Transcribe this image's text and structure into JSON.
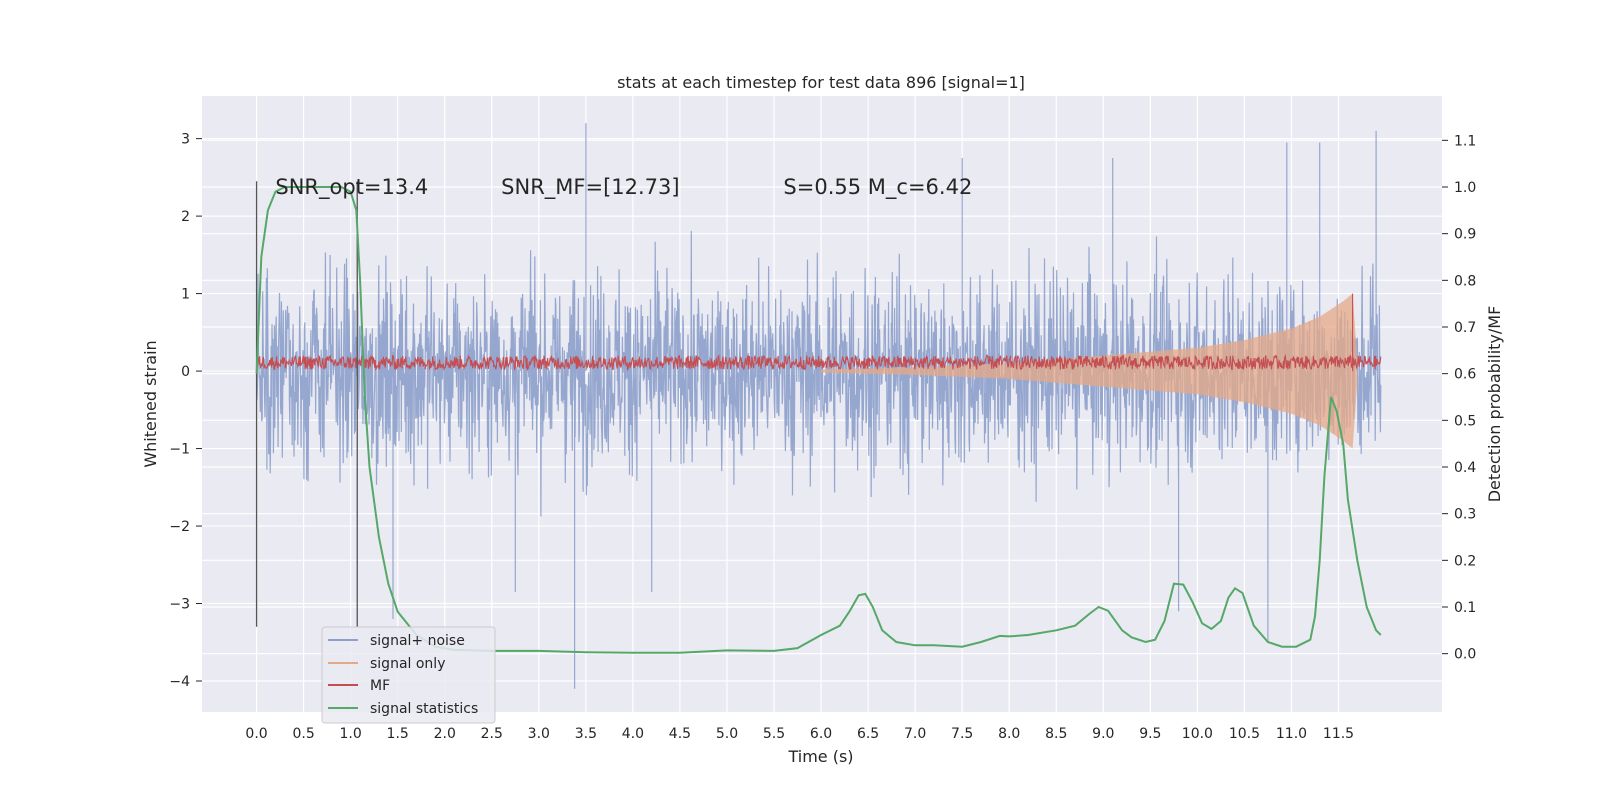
{
  "chart_data": {
    "type": "line",
    "title": "stats at each timestep for test data 896 [signal=1]",
    "xlabel": "Time (s)",
    "ylabel_left": "Whitened strain",
    "ylabel_right": "Detection probability/MF",
    "xlim": [
      -0.58,
      12.6
    ],
    "ylim_left": [
      -4.4,
      3.55
    ],
    "ylim_right": [
      -0.125,
      1.195
    ],
    "x_ticks": [
      0.0,
      0.5,
      1.0,
      1.5,
      2.0,
      2.5,
      3.0,
      3.5,
      4.0,
      4.5,
      5.0,
      5.5,
      6.0,
      6.5,
      7.0,
      7.5,
      8.0,
      8.5,
      9.0,
      9.5,
      10.0,
      10.5,
      11.0,
      11.5
    ],
    "x_tick_labels": [
      "0.0",
      "0.5",
      "1.0",
      "1.5",
      "2.0",
      "2.5",
      "3.0",
      "3.5",
      "4.0",
      "4.5",
      "5.0",
      "5.5",
      "6.0",
      "6.5",
      "7.0",
      "7.5",
      "8.0",
      "8.5",
      "9.0",
      "9.5",
      "10.0",
      "10.5",
      "11.0",
      "11.5"
    ],
    "y_left_ticks": [
      -4,
      -3,
      -2,
      -1,
      0,
      1,
      2,
      3
    ],
    "y_left_tick_labels": [
      "−4",
      "−3",
      "−2",
      "−1",
      "0",
      "1",
      "2",
      "3"
    ],
    "y_right_ticks": [
      0.0,
      0.1,
      0.2,
      0.3,
      0.4,
      0.5,
      0.6,
      0.7,
      0.8,
      0.9,
      1.0,
      1.1
    ],
    "y_right_tick_labels": [
      "0.0",
      "0.1",
      "0.2",
      "0.3",
      "0.4",
      "0.5",
      "0.6",
      "0.7",
      "0.8",
      "0.9",
      "1.0",
      "1.1"
    ],
    "grid": true,
    "legend_placement": "lower-left",
    "annotations": [
      {
        "text": "SNR_opt=13.4",
        "x": 0.2,
        "y_left": 2.4
      },
      {
        "text": "SNR_MF=[12.73]",
        "x": 2.6,
        "y_left": 2.4
      },
      {
        "text": "S=0.55   M_c=6.42",
        "x": 5.6,
        "y_left": 2.4
      }
    ],
    "vertical_lines": [
      {
        "x": 0.0,
        "y_range_left": [
          -3.3,
          2.45
        ]
      },
      {
        "x": 1.07,
        "y_range_left": [
          -3.3,
          2.45
        ]
      }
    ],
    "series": [
      {
        "name": "signal+ noise",
        "axis": "left",
        "color": "#8da0cb",
        "x_range": [
          0.0,
          11.95
        ],
        "typical_band": [
          -1.3,
          1.3
        ],
        "extremes": [
          -4.1,
          3.2
        ],
        "spikes": [
          {
            "x": 3.38,
            "y": -4.1
          },
          {
            "x": 3.5,
            "y": 3.2
          },
          {
            "x": 11.9,
            "y": 3.1
          },
          {
            "x": 10.75,
            "y": -3.5
          },
          {
            "x": 10.95,
            "y": 2.95
          },
          {
            "x": 11.3,
            "y": 2.95
          },
          {
            "x": 1.45,
            "y": -3.2
          },
          {
            "x": 2.75,
            "y": -2.85
          },
          {
            "x": 4.2,
            "y": -2.85
          },
          {
            "x": 9.1,
            "y": 2.75
          },
          {
            "x": 7.5,
            "y": 2.75
          },
          {
            "x": 9.8,
            "y": -3.1
          }
        ]
      },
      {
        "name": "signal only",
        "axis": "left",
        "color": "#e5a887",
        "points": [
          {
            "x": 6.0,
            "amp": 0.02
          },
          {
            "x": 7.0,
            "amp": 0.05
          },
          {
            "x": 8.0,
            "amp": 0.1
          },
          {
            "x": 9.0,
            "amp": 0.2
          },
          {
            "x": 10.0,
            "amp": 0.3
          },
          {
            "x": 10.5,
            "amp": 0.4
          },
          {
            "x": 11.0,
            "amp": 0.55
          },
          {
            "x": 11.3,
            "amp": 0.7
          },
          {
            "x": 11.55,
            "amp": 0.9
          },
          {
            "x": 11.65,
            "amp": 1.0
          },
          {
            "x": 11.7,
            "amp": 0.15
          }
        ]
      },
      {
        "name": "MF",
        "axis": "left",
        "color": "#c44e52",
        "x_range": [
          0.0,
          11.95
        ],
        "baseline": [
          0.0,
          0.2
        ],
        "peak": {
          "x": 11.65,
          "y": 1.0
        }
      },
      {
        "name": "signal statistics",
        "axis": "right",
        "color": "#55a868",
        "points": [
          [
            0.0,
            0.6
          ],
          [
            0.05,
            0.85
          ],
          [
            0.12,
            0.95
          ],
          [
            0.2,
            0.99
          ],
          [
            0.3,
            1.0
          ],
          [
            0.5,
            1.0
          ],
          [
            0.7,
            1.0
          ],
          [
            0.9,
            1.0
          ],
          [
            1.0,
            0.99
          ],
          [
            1.06,
            0.95
          ],
          [
            1.1,
            0.8
          ],
          [
            1.15,
            0.55
          ],
          [
            1.2,
            0.4
          ],
          [
            1.3,
            0.25
          ],
          [
            1.4,
            0.15
          ],
          [
            1.5,
            0.09
          ],
          [
            1.7,
            0.04
          ],
          [
            1.9,
            0.015
          ],
          [
            2.1,
            0.008
          ],
          [
            2.5,
            0.006
          ],
          [
            3.0,
            0.006
          ],
          [
            3.5,
            0.003
          ],
          [
            4.0,
            0.002
          ],
          [
            4.5,
            0.002
          ],
          [
            5.0,
            0.007
          ],
          [
            5.5,
            0.006
          ],
          [
            5.75,
            0.012
          ],
          [
            6.0,
            0.04
          ],
          [
            6.2,
            0.06
          ],
          [
            6.3,
            0.09
          ],
          [
            6.4,
            0.125
          ],
          [
            6.47,
            0.128
          ],
          [
            6.55,
            0.1
          ],
          [
            6.65,
            0.05
          ],
          [
            6.8,
            0.025
          ],
          [
            7.0,
            0.018
          ],
          [
            7.2,
            0.018
          ],
          [
            7.5,
            0.015
          ],
          [
            7.7,
            0.025
          ],
          [
            7.9,
            0.038
          ],
          [
            8.0,
            0.037
          ],
          [
            8.2,
            0.04
          ],
          [
            8.5,
            0.05
          ],
          [
            8.7,
            0.06
          ],
          [
            8.85,
            0.085
          ],
          [
            8.95,
            0.1
          ],
          [
            9.05,
            0.092
          ],
          [
            9.2,
            0.05
          ],
          [
            9.3,
            0.035
          ],
          [
            9.45,
            0.025
          ],
          [
            9.55,
            0.03
          ],
          [
            9.65,
            0.07
          ],
          [
            9.75,
            0.15
          ],
          [
            9.85,
            0.148
          ],
          [
            9.95,
            0.11
          ],
          [
            10.05,
            0.065
          ],
          [
            10.15,
            0.053
          ],
          [
            10.25,
            0.07
          ],
          [
            10.33,
            0.12
          ],
          [
            10.4,
            0.14
          ],
          [
            10.48,
            0.13
          ],
          [
            10.6,
            0.06
          ],
          [
            10.75,
            0.025
          ],
          [
            10.9,
            0.015
          ],
          [
            11.05,
            0.015
          ],
          [
            11.2,
            0.03
          ],
          [
            11.25,
            0.08
          ],
          [
            11.3,
            0.2
          ],
          [
            11.35,
            0.38
          ],
          [
            11.42,
            0.55
          ],
          [
            11.48,
            0.52
          ],
          [
            11.55,
            0.45
          ],
          [
            11.6,
            0.33
          ],
          [
            11.7,
            0.2
          ],
          [
            11.8,
            0.1
          ],
          [
            11.9,
            0.05
          ],
          [
            11.95,
            0.04
          ]
        ]
      }
    ]
  }
}
